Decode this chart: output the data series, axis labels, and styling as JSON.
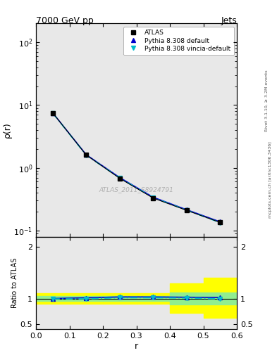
{
  "title_left": "7000 GeV pp",
  "title_right": "Jets",
  "right_label1": "Rivet 3.1.10, ≥ 3.2M events",
  "right_label2": "mcplots.cern.ch [arXiv:1306.3436]",
  "watermark": "ATLAS_2011_S8924791",
  "ylabel_main": "ρ(r)",
  "ylabel_ratio": "Ratio to ATLAS",
  "xlabel": "r",
  "xlim": [
    0,
    0.6
  ],
  "ylim_main": [
    0.08,
    200
  ],
  "ylim_ratio": [
    0.4,
    2.2
  ],
  "atlas_x": [
    0.05,
    0.15,
    0.25,
    0.35,
    0.45,
    0.55
  ],
  "atlas_y": [
    7.5,
    1.6,
    0.68,
    0.33,
    0.21,
    0.135
  ],
  "pythia_default_x": [
    0.05,
    0.15,
    0.25,
    0.35,
    0.45,
    0.55
  ],
  "pythia_default_y": [
    7.5,
    1.62,
    0.7,
    0.34,
    0.215,
    0.138
  ],
  "pythia_vincia_x": [
    0.05,
    0.15,
    0.25,
    0.35,
    0.45,
    0.55
  ],
  "pythia_vincia_y": [
    7.45,
    1.59,
    0.69,
    0.335,
    0.212,
    0.134
  ],
  "atlas_color": "black",
  "pythia_default_color": "#0000cc",
  "pythia_vincia_color": "#00bbcc",
  "ratio_x": [
    0.05,
    0.15,
    0.25,
    0.35,
    0.45,
    0.55
  ],
  "ratio_pythia_default": [
    1.0,
    1.013,
    1.03,
    1.03,
    1.024,
    1.02
  ],
  "ratio_pythia_vincia": [
    0.993,
    0.994,
    1.015,
    1.015,
    1.01,
    0.993
  ],
  "green_band_xlo": [
    0.0,
    0.1,
    0.2,
    0.3,
    0.4,
    0.5
  ],
  "green_band_xhi": [
    0.1,
    0.2,
    0.3,
    0.4,
    0.5,
    0.6
  ],
  "green_band_lo": [
    0.95,
    0.95,
    0.95,
    0.95,
    0.88,
    0.88
  ],
  "green_band_hi": [
    1.05,
    1.05,
    1.05,
    1.05,
    1.12,
    1.12
  ],
  "yellow_band_xlo": [
    0.0,
    0.1,
    0.2,
    0.3,
    0.4,
    0.5
  ],
  "yellow_band_xhi": [
    0.1,
    0.2,
    0.3,
    0.4,
    0.5,
    0.6
  ],
  "yellow_band_lo": [
    0.9,
    0.9,
    0.9,
    0.9,
    0.72,
    0.62
  ],
  "yellow_band_hi": [
    1.1,
    1.1,
    1.1,
    1.1,
    1.3,
    1.4
  ],
  "legend_entries": [
    "ATLAS",
    "Pythia 8.308 default",
    "Pythia 8.308 vincia-default"
  ],
  "bg_color": "#e8e8e8"
}
